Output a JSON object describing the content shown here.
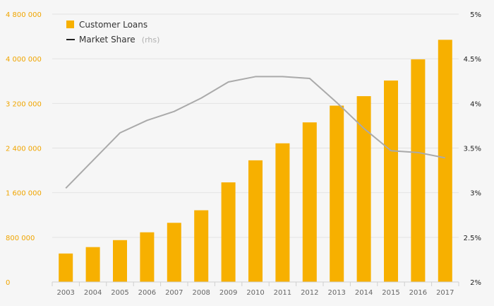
{
  "chart_data": {
    "type": "bar",
    "categories": [
      "2003",
      "2004",
      "2005",
      "2006",
      "2007",
      "2008",
      "2009",
      "2010",
      "2011",
      "2012",
      "2013",
      "2014",
      "2015",
      "2016",
      "2017"
    ],
    "series": [
      {
        "name": "Customer Loans",
        "type": "bar",
        "axis": "left",
        "values": [
          510000,
          625000,
          750000,
          890000,
          1060000,
          1285000,
          1785000,
          2180000,
          2485000,
          2860000,
          3160000,
          3330000,
          3610000,
          3990000,
          4340000
        ]
      },
      {
        "name": "Market Share",
        "name_note": "(rhs)",
        "type": "line",
        "axis": "right",
        "values": [
          3.05,
          3.36,
          3.67,
          3.81,
          3.91,
          4.06,
          4.24,
          4.3,
          4.3,
          4.28,
          4.01,
          3.72,
          3.47,
          3.45,
          3.39
        ]
      }
    ],
    "y_left": {
      "ylim": [
        0,
        4800000
      ],
      "ticks": [
        0,
        800000,
        1600000,
        2400000,
        3200000,
        4000000,
        4800000
      ],
      "tick_labels": [
        "0",
        "800 000",
        "1 600 000",
        "2 400 000",
        "3 200 000",
        "4 000 000",
        "4 800 000"
      ]
    },
    "y_right": {
      "ylim": [
        2,
        5
      ],
      "ticks": [
        2,
        2.5,
        3,
        3.5,
        4,
        4.5,
        5
      ],
      "tick_labels": [
        "2%",
        "2.5%",
        "3%",
        "3.5%",
        "4%",
        "4.5%",
        "5%"
      ]
    },
    "grid": true,
    "legend_position": "top-left",
    "colors": {
      "bar": "#f7b000",
      "line": "#aaaaaa",
      "legend_line": "#222222",
      "left_tick": "#f0a500",
      "right_tick": "#222222",
      "grid": "#e3e3e3",
      "x_tick": "#666666",
      "axis": "#d0d0d0"
    }
  }
}
